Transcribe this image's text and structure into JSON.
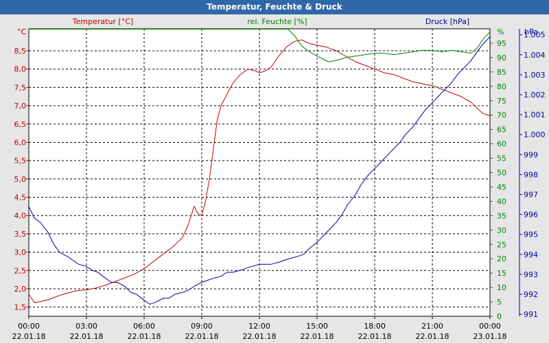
{
  "window": {
    "title": "Temperatur, Feuchte & Druck"
  },
  "chart_data": {
    "type": "line",
    "title": "Temperatur, Feuchte & Druck",
    "grid": true,
    "colors": {
      "temperature": "#c00000",
      "humidity": "#008000",
      "pressure": "#00009c"
    },
    "units": {
      "temperature": "°C",
      "humidity": "%",
      "pressure": "hPa"
    },
    "x_ticks": [
      {
        "time": "00:00",
        "date": "22.01.18"
      },
      {
        "time": "03:00",
        "date": "22.01.18"
      },
      {
        "time": "06:00",
        "date": "22.01.18"
      },
      {
        "time": "09:00",
        "date": "22.01.18"
      },
      {
        "time": "12:00",
        "date": "22.01.18"
      },
      {
        "time": "15:00",
        "date": "22.01.18"
      },
      {
        "time": "18:00",
        "date": "22.01.18"
      },
      {
        "time": "21:00",
        "date": "22.01.18"
      },
      {
        "time": "00:00",
        "date": "23.01.18"
      }
    ],
    "xlim_hours": [
      0,
      24
    ],
    "axes": {
      "temperature": {
        "ylim": [
          1.25,
          9.1
        ],
        "ticks": [
          "1,5",
          "2,0",
          "2,5",
          "3,0",
          "3,5",
          "4,0",
          "4,5",
          "5,0",
          "5,5",
          "6,0",
          "6,5",
          "7,0",
          "7,5",
          "8,0",
          "8,5"
        ],
        "tick_values": [
          1.5,
          2.0,
          2.5,
          3.0,
          3.5,
          4.0,
          4.5,
          5.0,
          5.5,
          6.0,
          6.5,
          7.0,
          7.5,
          8.0,
          8.5
        ]
      },
      "humidity": {
        "ylim": [
          0,
          100
        ],
        "ticks": [
          "0",
          "5",
          "10",
          "15",
          "20",
          "25",
          "30",
          "35",
          "40",
          "45",
          "50",
          "55",
          "60",
          "65",
          "70",
          "75",
          "80",
          "85",
          "90",
          "95"
        ],
        "tick_values": [
          0,
          5,
          10,
          15,
          20,
          25,
          30,
          35,
          40,
          45,
          50,
          55,
          60,
          65,
          70,
          75,
          80,
          85,
          90,
          95
        ]
      },
      "pressure": {
        "ylim": [
          990.9,
          1005.3
        ],
        "ticks": [
          "991",
          "992",
          "993",
          "994",
          "995",
          "996",
          "997",
          "998",
          "999",
          "1.000",
          "1.001",
          "1.002",
          "1.003",
          "1.004",
          "1.005"
        ],
        "tick_values": [
          991,
          992,
          993,
          994,
          995,
          996,
          997,
          998,
          999,
          1000,
          1001,
          1002,
          1003,
          1004,
          1005
        ]
      }
    },
    "series": [
      {
        "name": "Temperatur [°C]",
        "axis": "temperature",
        "x": [
          0,
          0.3,
          0.6,
          1,
          1.5,
          2,
          2.5,
          3,
          3.5,
          4,
          4.5,
          5,
          5.5,
          6,
          6.5,
          7,
          7.5,
          8,
          8.3,
          8.6,
          8.8,
          9,
          9.2,
          9.4,
          9.6,
          9.8,
          10,
          10.3,
          10.6,
          11,
          11.4,
          11.8,
          12,
          12.3,
          12.6,
          13,
          13.4,
          13.8,
          14.2,
          14.6,
          15,
          15.5,
          16,
          16.5,
          17,
          17.5,
          18,
          18.5,
          19,
          19.5,
          20,
          20.5,
          21,
          21.5,
          22,
          22.5,
          23,
          23.3,
          23.6,
          24
        ],
        "y": [
          1.85,
          1.62,
          1.65,
          1.7,
          1.8,
          1.88,
          1.95,
          1.97,
          2.02,
          2.1,
          2.2,
          2.3,
          2.4,
          2.55,
          2.75,
          2.95,
          3.15,
          3.4,
          3.75,
          4.25,
          4.05,
          4.0,
          4.4,
          5.0,
          5.8,
          6.6,
          7.0,
          7.3,
          7.6,
          7.85,
          8.0,
          7.95,
          7.9,
          7.95,
          8.05,
          8.35,
          8.6,
          8.75,
          8.8,
          8.7,
          8.65,
          8.6,
          8.5,
          8.35,
          8.2,
          8.1,
          8.0,
          7.9,
          7.85,
          7.75,
          7.65,
          7.6,
          7.55,
          7.45,
          7.35,
          7.25,
          7.1,
          6.95,
          6.8,
          6.72
        ]
      },
      {
        "name": "rel. Feuchte [%]",
        "axis": "humidity",
        "x": [
          0,
          0.5,
          1,
          3,
          6,
          9,
          12,
          13.5,
          13.9,
          14.2,
          14.6,
          15,
          15.3,
          15.6,
          16,
          16.5,
          17,
          17.5,
          18,
          18.5,
          19,
          19.5,
          20,
          20.5,
          21,
          21.5,
          22,
          22.5,
          23,
          23.3,
          23.6,
          24
        ],
        "y": [
          100,
          100,
          100,
          100,
          100,
          100,
          100,
          100,
          97,
          94,
          92,
          90.5,
          89.5,
          88.5,
          89,
          90,
          90.5,
          91,
          91.5,
          91.5,
          91,
          91.5,
          92,
          92.5,
          92.5,
          92,
          92.5,
          92,
          91.5,
          93,
          96,
          99
        ]
      },
      {
        "name": "Druck [hPa]",
        "axis": "pressure",
        "x": [
          0,
          0.3,
          0.6,
          1,
          1.3,
          1.6,
          2,
          2.3,
          2.6,
          3,
          3.3,
          3.6,
          4,
          4.3,
          4.6,
          5,
          5.3,
          5.6,
          6,
          6.3,
          6.6,
          7,
          7.3,
          7.6,
          8,
          8.3,
          8.6,
          9,
          9.3,
          9.6,
          10,
          10.3,
          10.6,
          11,
          11.3,
          11.6,
          12,
          12.3,
          12.6,
          13,
          13.3,
          13.6,
          14,
          14.3,
          14.6,
          15,
          15.3,
          15.6,
          16,
          16.3,
          16.6,
          17,
          17.3,
          17.6,
          18,
          18.3,
          18.6,
          19,
          19.3,
          19.6,
          20,
          20.3,
          20.6,
          21,
          21.3,
          21.6,
          22,
          22.3,
          22.6,
          23,
          23.3,
          23.6,
          24
        ],
        "y": [
          996.4,
          995.8,
          995.6,
          995.1,
          994.5,
          994.1,
          993.9,
          993.7,
          993.5,
          993.4,
          993.2,
          993.1,
          992.8,
          992.6,
          992.6,
          992.4,
          992.1,
          992.0,
          991.7,
          991.5,
          991.6,
          991.8,
          991.8,
          992.0,
          992.1,
          992.2,
          992.4,
          992.6,
          992.7,
          992.8,
          992.9,
          993.1,
          993.1,
          993.2,
          993.3,
          993.4,
          993.5,
          993.5,
          993.5,
          993.6,
          993.7,
          993.8,
          993.9,
          994.0,
          994.3,
          994.6,
          994.9,
          995.2,
          995.6,
          996.0,
          996.5,
          997.0,
          997.5,
          997.9,
          998.3,
          998.6,
          998.9,
          999.3,
          999.6,
          1000.0,
          1000.4,
          1000.8,
          1001.2,
          1001.6,
          1001.9,
          1002.2,
          1002.6,
          1003.0,
          1003.3,
          1003.7,
          1004.1,
          1004.5,
          1004.9
        ]
      }
    ]
  }
}
